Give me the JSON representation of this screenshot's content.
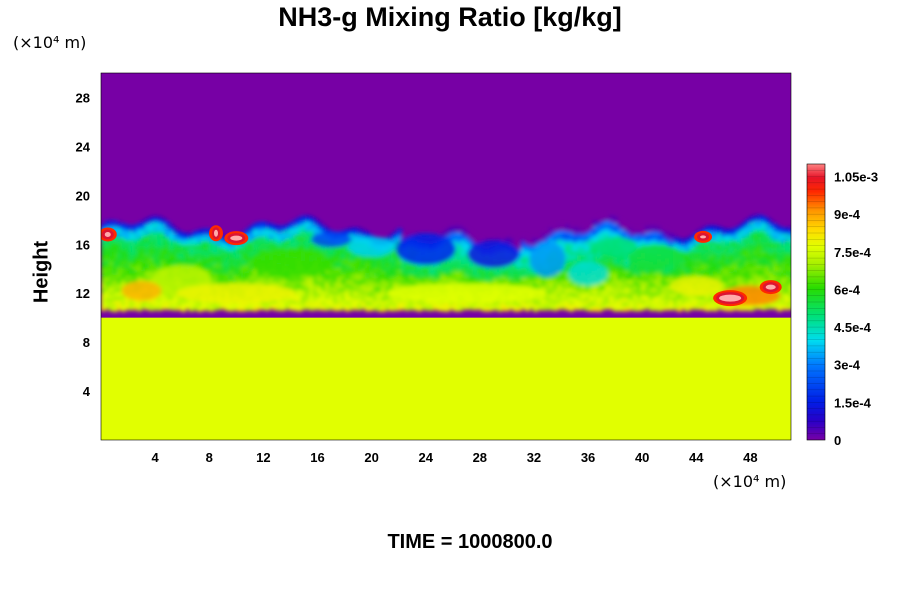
{
  "chart_data": {
    "type": "heatmap",
    "title": "NH3-g Mixing Ratio [kg/kg]",
    "xlabel": "",
    "ylabel": "Height",
    "x_unit": "(×10⁴ m)",
    "y_unit": "(×10⁴ m)",
    "footer": "TIME = 1000800.0",
    "xlim": [
      0,
      51
    ],
    "ylim": [
      0,
      30
    ],
    "x_ticks": [
      4,
      8,
      12,
      16,
      20,
      24,
      28,
      32,
      36,
      40,
      44,
      48
    ],
    "y_ticks": [
      4,
      8,
      12,
      16,
      20,
      24,
      28
    ],
    "colorbar": {
      "range": [
        0,
        0.0011
      ],
      "tick_values": [
        0,
        0.00015,
        0.0003,
        0.00045,
        0.0006,
        0.00075,
        0.0009,
        0.00105
      ],
      "tick_labels": [
        "0",
        "1.5e-4",
        "3e-4",
        "4.5e-4",
        "6e-4",
        "7.5e-4",
        "9e-4",
        "1.05e-3"
      ]
    },
    "regions": {
      "upper_value": 0,
      "lower_value": 0.00075,
      "lower_top_height": 10,
      "mixing_layer_top_height": 18,
      "mixing_layer_bottom_height": 11
    }
  },
  "colors": {
    "upper": "#7700a5",
    "lower": "#e1ff00"
  }
}
